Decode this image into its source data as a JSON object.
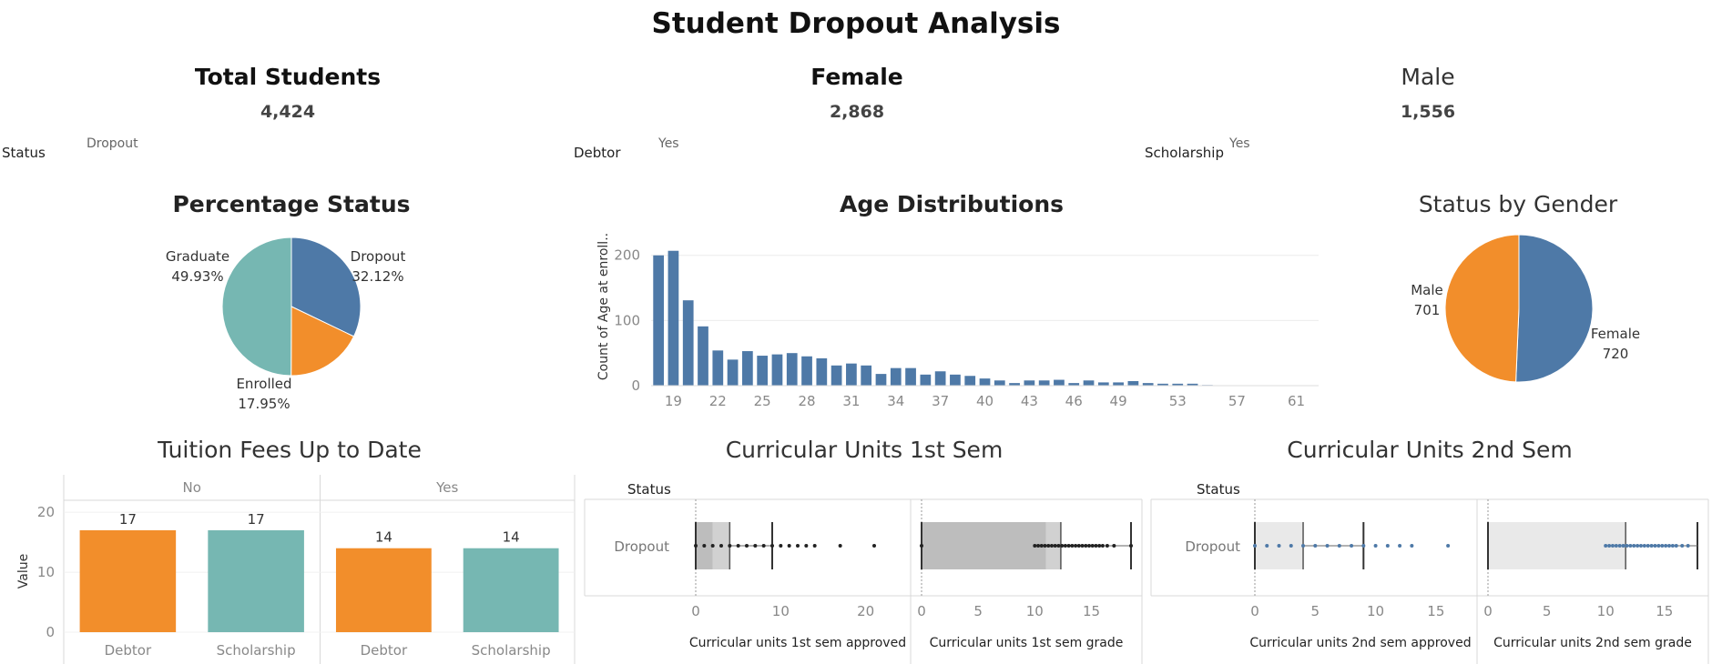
{
  "dashboard_title": "Student Dropout Analysis",
  "kpis": {
    "total": {
      "title": "Total Students",
      "value": "4,424"
    },
    "female": {
      "title": "Female",
      "value": "2,868"
    },
    "male": {
      "title": "Male",
      "value": "1,556"
    }
  },
  "filters": {
    "status": {
      "label": "Status",
      "value": "Dropout"
    },
    "debtor": {
      "label": "Debtor",
      "value": "Yes"
    },
    "scholarship": {
      "label": "Scholarship",
      "value": "Yes"
    }
  },
  "colors": {
    "blue": "#4e79a7",
    "orange": "#f28e2b",
    "teal": "#76b7b2",
    "grey_box": "#bdbdbd",
    "light_box": "#e0e0e0"
  },
  "chart_data": [
    {
      "id": "percentage_status",
      "type": "pie",
      "title": "Percentage Status",
      "slices": [
        {
          "label": "Dropout",
          "value": 32.12,
          "display": "32.12%",
          "color": "#4e79a7"
        },
        {
          "label": "Enrolled",
          "value": 17.95,
          "display": "17.95%",
          "color": "#f28e2b"
        },
        {
          "label": "Graduate",
          "value": 49.93,
          "display": "49.93%",
          "color": "#76b7b2"
        }
      ]
    },
    {
      "id": "age_distributions",
      "type": "bar",
      "title": "Age Distributions",
      "ylabel": "Count of Age at enroll..",
      "xlabel": "",
      "x": [
        18,
        19,
        20,
        21,
        22,
        23,
        24,
        25,
        26,
        27,
        28,
        29,
        30,
        31,
        32,
        33,
        34,
        35,
        36,
        37,
        38,
        39,
        40,
        41,
        42,
        43,
        44,
        45,
        46,
        47,
        48,
        49,
        50,
        51,
        52,
        53,
        54,
        55
      ],
      "values": [
        200,
        207,
        131,
        91,
        54,
        40,
        53,
        46,
        48,
        50,
        45,
        42,
        31,
        34,
        31,
        18,
        27,
        27,
        17,
        22,
        17,
        15,
        11,
        8,
        4,
        8,
        8,
        9,
        4,
        8,
        5,
        5,
        7,
        4,
        3,
        3,
        3,
        1
      ],
      "x_ticks": [
        19,
        22,
        25,
        28,
        31,
        34,
        37,
        40,
        43,
        46,
        49,
        53,
        57,
        61
      ],
      "y_ticks": [
        0,
        100,
        200
      ],
      "ylim": [
        0,
        215
      ],
      "xlim": [
        17.5,
        62.5
      ],
      "grid": true
    },
    {
      "id": "status_by_gender",
      "type": "pie",
      "title": "Status by Gender",
      "slices": [
        {
          "label": "Female",
          "value": 720,
          "display": "720",
          "color": "#4e79a7"
        },
        {
          "label": "Male",
          "value": 701,
          "display": "701",
          "color": "#f28e2b"
        }
      ]
    },
    {
      "id": "tuition_fees",
      "type": "bar",
      "title": "Tuition Fees Up to Date",
      "ylabel": "Value",
      "groups": [
        {
          "name": "No",
          "categories": [
            "Debtor",
            "Scholarship"
          ],
          "values": [
            17,
            17
          ]
        },
        {
          "name": "Yes",
          "categories": [
            "Debtor",
            "Scholarship"
          ],
          "values": [
            14,
            14
          ]
        }
      ],
      "category_colors": {
        "Debtor": "#f28e2b",
        "Scholarship": "#76b7b2"
      },
      "y_ticks": [
        0,
        10,
        20
      ],
      "ylim": [
        0,
        22
      ]
    },
    {
      "id": "units_1st_sem",
      "type": "box",
      "title": "Curricular Units 1st Sem",
      "row_header": "Status",
      "row_label": "Dropout",
      "panels": [
        {
          "xlabel": "Curricular units 1st sem approved",
          "ticks": [
            0,
            10,
            20
          ],
          "xlim": [
            0,
            24
          ],
          "q1": 0,
          "median": 2,
          "q3": 4,
          "whisker_low": 0,
          "whisker_high": 9,
          "points": [
            0,
            1,
            2,
            3,
            4,
            5,
            6,
            7,
            8,
            9,
            10,
            11,
            12,
            13,
            14,
            17,
            21
          ],
          "point_color": "#222222",
          "box_color": "#bdbdbd"
        },
        {
          "xlabel": "Curricular units 1st sem grade",
          "ticks": [
            0,
            5,
            10,
            15
          ],
          "xlim": [
            0,
            18.5
          ],
          "q1": 0,
          "median": 11,
          "q3": 12.3,
          "whisker_low": 0,
          "whisker_high": 18.5,
          "points": [
            0,
            10,
            10.3,
            10.6,
            10.9,
            11.2,
            11.5,
            11.8,
            12.1,
            12.4,
            12.7,
            13,
            13.3,
            13.6,
            13.9,
            14.2,
            14.5,
            14.8,
            15.1,
            15.4,
            15.7,
            16,
            16.4,
            17,
            18.5
          ],
          "point_color": "#222222",
          "box_color": "#bdbdbd"
        }
      ]
    },
    {
      "id": "units_2nd_sem",
      "type": "box",
      "title": "Curricular Units 2nd Sem",
      "row_header": "Status",
      "row_label": "Dropout",
      "panels": [
        {
          "xlabel": "Curricular units 2nd sem approved",
          "ticks": [
            0,
            5,
            10,
            15
          ],
          "xlim": [
            0,
            17.5
          ],
          "q1": 0,
          "median": 0,
          "q3": 4,
          "whisker_low": 0,
          "whisker_high": 9,
          "points": [
            0,
            1,
            2,
            3,
            4,
            5,
            6,
            7,
            8,
            9,
            10,
            11,
            12,
            13,
            16
          ],
          "point_color": "#4e79a7",
          "box_color": "#e0e0e0"
        },
        {
          "xlabel": "Curricular units 2nd sem grade",
          "ticks": [
            0,
            5,
            10,
            15
          ],
          "xlim": [
            0,
            17.8
          ],
          "q1": 0,
          "median": 0,
          "q3": 11.7,
          "whisker_low": 0,
          "whisker_high": 17.8,
          "points": [
            10,
            10.3,
            10.6,
            10.9,
            11.2,
            11.5,
            11.8,
            12.1,
            12.4,
            12.7,
            13,
            13.3,
            13.6,
            13.9,
            14.2,
            14.5,
            14.8,
            15.1,
            15.4,
            15.7,
            16,
            16.5,
            17
          ],
          "point_color": "#4e79a7",
          "box_color": "#e0e0e0"
        }
      ]
    }
  ]
}
